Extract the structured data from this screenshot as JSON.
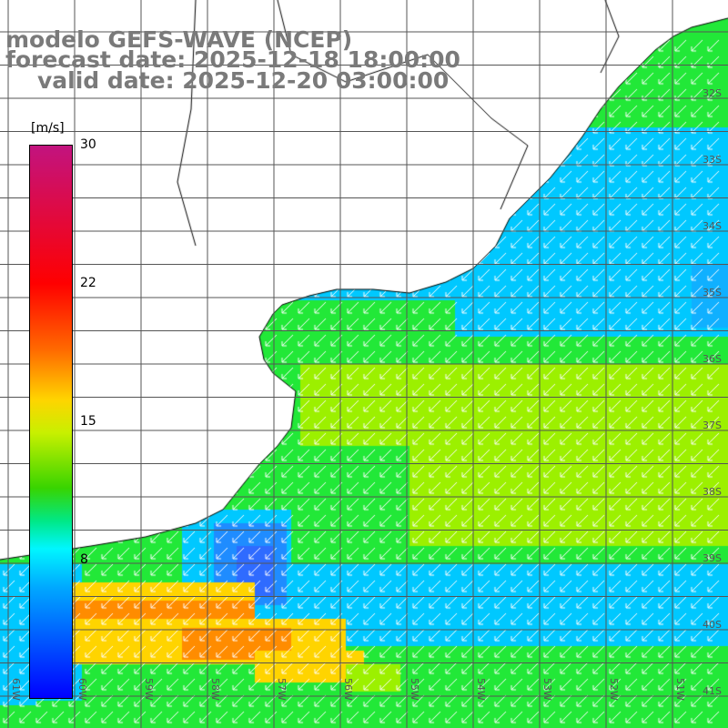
{
  "header": {
    "model": "modelo GEFS-WAVE (NCEP)",
    "forecast": "forecast date: 2025-12-18 18:00:00",
    "valid": "valid date: 2025-12-20 03:00:00"
  },
  "legend": {
    "unit": "[m/s]",
    "ticks": [
      "30",
      "22",
      "15",
      "8"
    ],
    "colors": [
      "#c2137f",
      "#ff0000",
      "#ff6a00",
      "#ffd400",
      "#c8f000",
      "#38d400",
      "#00e887",
      "#00f6ff",
      "#00a8ff",
      "#0000ff"
    ]
  },
  "map": {
    "lat_labels": [
      "32S",
      "33S",
      "34S",
      "35S",
      "36S",
      "37S",
      "38S",
      "39S",
      "40S",
      "41S"
    ],
    "lon_labels": [
      "61W",
      "60W",
      "59W",
      "58W",
      "57W",
      "56W",
      "55W",
      "54W",
      "53W",
      "52W",
      "51W"
    ],
    "grid": true,
    "wind_direction": "toward southwest",
    "field_colors": {
      "land": "#ffffff",
      "calm": "#2f6bff",
      "light": "#00c8ff",
      "moderate": "#22e838",
      "fresh": "#9cf000",
      "strong": "#ffd400",
      "gale": "#ff8c00"
    }
  }
}
